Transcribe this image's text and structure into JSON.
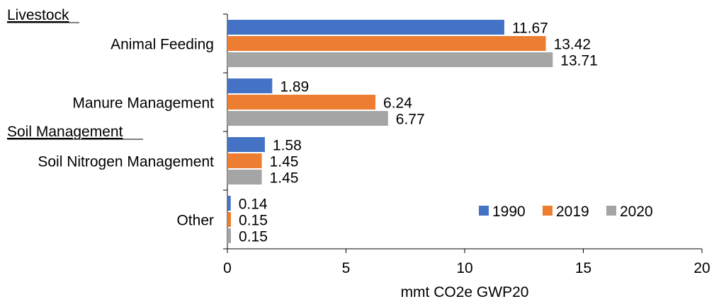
{
  "chart_data": {
    "type": "bar",
    "orientation": "horizontal",
    "group_headers": [
      {
        "label": "Livestock",
        "before_category": 0
      },
      {
        "label": "Soil Management",
        "before_category": 2
      }
    ],
    "categories": [
      "Animal Feeding",
      "Manure Management",
      "Soil Nitrogen Management",
      "Other"
    ],
    "series": [
      {
        "name": "1990",
        "color": "#4472C4",
        "values": [
          11.67,
          1.89,
          1.58,
          0.14
        ]
      },
      {
        "name": "2019",
        "color": "#ED7D31",
        "values": [
          13.42,
          6.24,
          1.45,
          0.15
        ]
      },
      {
        "name": "2020",
        "color": "#A5A5A5",
        "values": [
          13.71,
          6.77,
          1.45,
          0.15
        ]
      }
    ],
    "data_labels": [
      [
        "11.67",
        "1.89",
        "1.58",
        "0.14"
      ],
      [
        "13.42",
        "6.24",
        "1.45",
        "0.15"
      ],
      [
        "13.71",
        "6.77",
        "1.45",
        "0.15"
      ]
    ],
    "xlim": [
      0,
      20
    ],
    "xticks": [
      "0",
      "5",
      "10",
      "15",
      "20"
    ],
    "xlabel": "mmt CO2e GWP20",
    "ylabel": "",
    "title": "",
    "grid": false,
    "legend_position": "bottom-right"
  }
}
